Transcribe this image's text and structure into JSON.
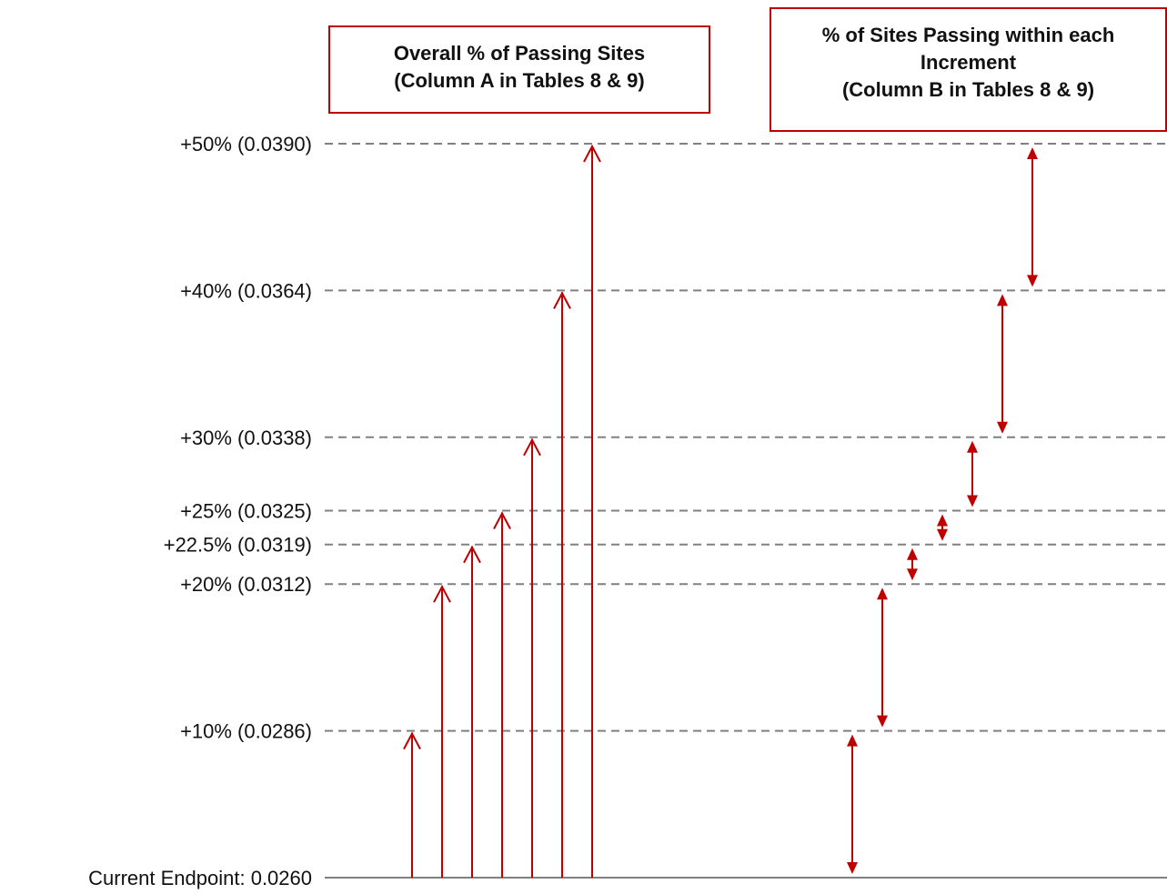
{
  "diagram": {
    "baseline_label": "Current Endpoint: 0.0260",
    "levels": [
      {
        "label": "+10% (0.0286)",
        "value": 0.0286
      },
      {
        "label": "+20% (0.0312)",
        "value": 0.0312
      },
      {
        "label": "+22.5% (0.0319)",
        "value": 0.0319
      },
      {
        "label": "+25% (0.0325)",
        "value": 0.0325
      },
      {
        "label": "+30% (0.0338)",
        "value": 0.0338
      },
      {
        "label": "+40% (0.0364)",
        "value": 0.0364
      },
      {
        "label": "+50% (0.0390)",
        "value": 0.039
      }
    ],
    "box_a": {
      "line1": "Overall % of Passing Sites",
      "line2": "(Column A in Tables 8 & 9)"
    },
    "box_b": {
      "line1": "% of Sites Passing within each",
      "line2": "Increment",
      "line3": "(Column B in Tables 8 & 9)"
    },
    "colors": {
      "arrow": "#c00000",
      "gridline": "#808080",
      "baseline": "#808080",
      "text": "#111111"
    }
  }
}
